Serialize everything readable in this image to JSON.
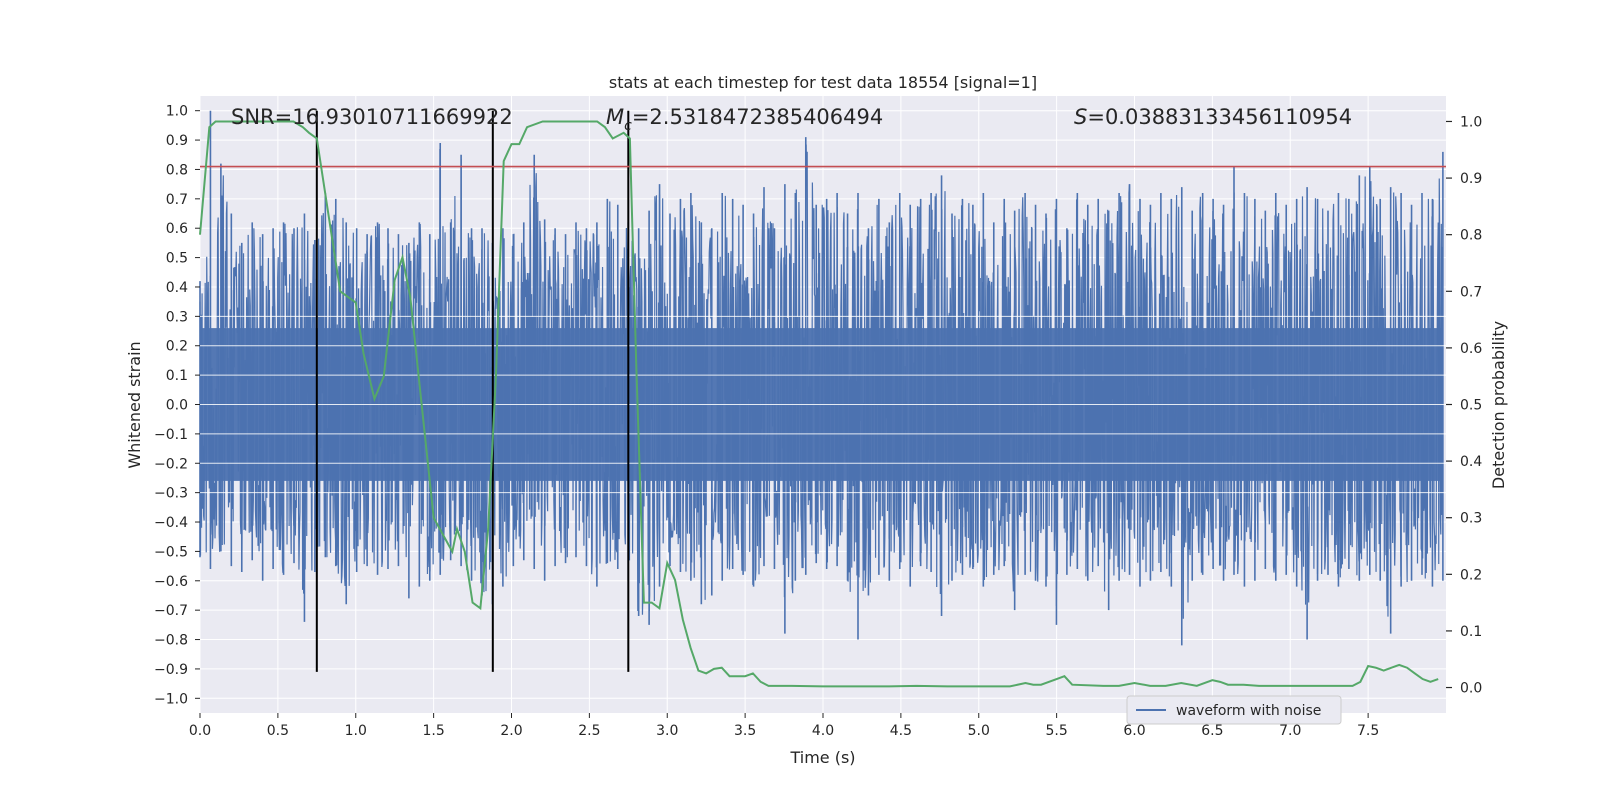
{
  "chart_data": {
    "type": "line",
    "title": "stats at each timestep for test data 18554 [signal=1]",
    "xlabel": "Time (s)",
    "ylabel": "Whitened strain",
    "y2label": "Detection probability",
    "xlim": [
      0.0,
      8.0
    ],
    "ylim": [
      -1.05,
      1.05
    ],
    "y2lim": [
      -0.045,
      1.045
    ],
    "x_ticks": [
      "0.0",
      "0.5",
      "1.0",
      "1.5",
      "2.0",
      "2.5",
      "3.0",
      "3.5",
      "4.0",
      "4.5",
      "5.0",
      "5.5",
      "6.0",
      "6.5",
      "7.0",
      "7.5"
    ],
    "y_ticks": [
      "-1.0",
      "-0.9",
      "-0.8",
      "-0.7",
      "-0.6",
      "-0.5",
      "-0.4",
      "-0.3",
      "-0.2",
      "-0.1",
      "0.0",
      "0.1",
      "0.2",
      "0.3",
      "0.4",
      "0.5",
      "0.6",
      "0.7",
      "0.8",
      "0.9",
      "1.0"
    ],
    "y2_ticks": [
      "0.0",
      "0.1",
      "0.2",
      "0.3",
      "0.4",
      "0.5",
      "0.6",
      "0.7",
      "0.8",
      "0.9",
      "1.0"
    ],
    "grid": true,
    "legend": {
      "position": "lower-right",
      "entries": [
        "waveform with noise"
      ]
    },
    "annotations": {
      "snr": "SNR=16.93010711669922",
      "mc_value": "=2.5318472385406494",
      "s_value": "=0.03883133456110954"
    },
    "waveform_with_noise": {
      "x_start": 0.0,
      "x_end": 7.98,
      "envelope_low": [
        -0.52,
        -0.56,
        -0.5,
        -0.55,
        -0.57,
        -0.53,
        -0.6,
        -0.56,
        -0.58,
        -0.54,
        -0.74,
        -0.57,
        -0.52,
        -0.55,
        -0.68,
        -0.57,
        -0.55,
        -0.58,
        -0.56,
        -0.55,
        -0.66,
        -0.62,
        -0.6,
        -0.58,
        -0.53,
        -0.55,
        -0.6,
        -0.65,
        -0.68,
        -0.62,
        -0.55,
        -0.53,
        -0.56,
        -0.6,
        -0.55,
        -0.54,
        -0.52,
        -0.55,
        -0.62,
        -0.54,
        -0.56,
        -0.6,
        -0.72,
        -0.75,
        -0.62,
        -0.55,
        -0.57,
        -0.6,
        -0.68,
        -0.65,
        -0.6,
        -0.56,
        -0.58,
        -0.62,
        -0.55,
        -0.56,
        -0.78,
        -0.6,
        -0.58,
        -0.54,
        -0.56,
        -0.55,
        -0.6,
        -0.8,
        -0.65,
        -0.58,
        -0.6,
        -0.56,
        -0.62,
        -0.55,
        -0.57,
        -0.72,
        -0.6,
        -0.58,
        -0.56,
        -0.62,
        -0.58,
        -0.55,
        -0.7,
        -0.58,
        -0.6,
        -0.62,
        -0.75,
        -0.58,
        -0.56,
        -0.6,
        -0.55,
        -0.7,
        -0.6,
        -0.58,
        -0.62,
        -0.6,
        -0.57,
        -0.62,
        -0.82,
        -0.6,
        -0.58,
        -0.56,
        -0.6,
        -0.58,
        -0.62,
        -0.6,
        -0.56,
        -0.6,
        -0.58,
        -0.62,
        -0.8,
        -0.6,
        -0.58,
        -0.62,
        -0.56,
        -0.6,
        -0.58,
        -0.6,
        -0.78,
        -0.62,
        -0.6,
        -0.58,
        -0.62,
        -0.6
      ],
      "envelope_high": [
        0.42,
        1.0,
        0.82,
        0.65,
        0.55,
        0.62,
        0.58,
        0.6,
        0.62,
        0.6,
        0.65,
        0.56,
        0.72,
        0.7,
        0.62,
        0.6,
        0.58,
        0.62,
        0.6,
        0.58,
        0.55,
        0.62,
        0.58,
        0.89,
        0.62,
        0.85,
        0.6,
        0.6,
        0.55,
        0.6,
        0.58,
        0.62,
        0.85,
        0.63,
        0.6,
        0.58,
        0.62,
        0.6,
        0.62,
        0.7,
        0.68,
        0.62,
        0.6,
        0.66,
        0.75,
        0.65,
        0.7,
        0.72,
        0.62,
        0.6,
        0.72,
        0.7,
        0.68,
        0.65,
        0.74,
        0.6,
        0.75,
        0.72,
        0.91,
        0.68,
        0.7,
        0.72,
        0.65,
        0.72,
        0.6,
        0.7,
        0.62,
        0.72,
        0.68,
        0.7,
        0.72,
        0.78,
        0.65,
        0.7,
        0.68,
        0.72,
        0.62,
        0.7,
        0.66,
        0.72,
        0.68,
        0.65,
        0.7,
        0.6,
        0.72,
        0.68,
        0.7,
        0.66,
        0.72,
        0.75,
        0.7,
        0.68,
        0.72,
        0.7,
        0.74,
        0.66,
        0.72,
        0.7,
        0.68,
        0.81,
        0.72,
        0.7,
        0.66,
        0.72,
        0.68,
        0.7,
        0.74,
        0.7,
        0.66,
        0.72,
        0.7,
        0.78,
        0.81,
        0.7,
        0.74,
        0.72,
        0.68,
        0.72,
        0.7,
        0.86
      ]
    },
    "detection_probability": {
      "x": [
        0.0,
        0.06,
        0.1,
        0.2,
        0.3,
        0.4,
        0.5,
        0.6,
        0.66,
        0.7,
        0.75,
        0.8,
        0.9,
        1.0,
        1.05,
        1.12,
        1.18,
        1.25,
        1.3,
        1.35,
        1.4,
        1.5,
        1.6,
        1.62,
        1.65,
        1.7,
        1.75,
        1.8,
        1.85,
        1.9,
        1.95,
        2.0,
        2.05,
        2.1,
        2.2,
        2.3,
        2.4,
        2.5,
        2.55,
        2.6,
        2.65,
        2.72,
        2.76,
        2.8,
        2.85,
        2.9,
        2.95,
        3.0,
        3.05,
        3.1,
        3.15,
        3.2,
        3.25,
        3.3,
        3.35,
        3.4,
        3.45,
        3.5,
        3.55,
        3.6,
        3.65,
        3.7,
        3.8,
        4.0,
        4.2,
        4.4,
        4.6,
        4.8,
        5.0,
        5.2,
        5.3,
        5.35,
        5.4,
        5.5,
        5.55,
        5.6,
        5.8,
        5.9,
        6.0,
        6.1,
        6.2,
        6.3,
        6.4,
        6.5,
        6.55,
        6.6,
        6.7,
        6.8,
        6.9,
        7.0,
        7.1,
        7.2,
        7.3,
        7.4,
        7.45,
        7.5,
        7.55,
        7.6,
        7.65,
        7.7,
        7.75,
        7.8,
        7.85,
        7.9,
        7.95
      ],
      "y": [
        0.8,
        0.99,
        1.0,
        1.0,
        1.0,
        1.0,
        1.0,
        1.0,
        0.99,
        0.98,
        0.97,
        0.88,
        0.7,
        0.68,
        0.59,
        0.51,
        0.55,
        0.72,
        0.76,
        0.69,
        0.56,
        0.3,
        0.25,
        0.24,
        0.28,
        0.24,
        0.15,
        0.14,
        0.28,
        0.55,
        0.93,
        0.96,
        0.96,
        0.99,
        1.0,
        1.0,
        1.0,
        1.0,
        1.0,
        0.99,
        0.97,
        0.98,
        0.97,
        0.58,
        0.15,
        0.15,
        0.14,
        0.22,
        0.19,
        0.12,
        0.07,
        0.03,
        0.025,
        0.033,
        0.035,
        0.02,
        0.02,
        0.02,
        0.025,
        0.01,
        0.003,
        0.003,
        0.003,
        0.002,
        0.002,
        0.002,
        0.003,
        0.002,
        0.002,
        0.002,
        0.008,
        0.005,
        0.005,
        0.015,
        0.02,
        0.005,
        0.003,
        0.003,
        0.008,
        0.003,
        0.003,
        0.008,
        0.003,
        0.013,
        0.01,
        0.005,
        0.005,
        0.003,
        0.003,
        0.003,
        0.003,
        0.003,
        0.003,
        0.003,
        0.01,
        0.038,
        0.035,
        0.03,
        0.035,
        0.04,
        0.035,
        0.025,
        0.015,
        0.01,
        0.015
      ]
    },
    "threshold_line": {
      "y": 0.81,
      "color": "#c44e52"
    },
    "vertical_markers_x": [
      0.75,
      1.88,
      2.75
    ],
    "colors": {
      "plot_bg": "#eaeaf2",
      "grid": "#ffffff",
      "waveform": "#4c72b0",
      "probability": "#55a868",
      "threshold": "#c44e52",
      "markers": "#000000"
    }
  }
}
